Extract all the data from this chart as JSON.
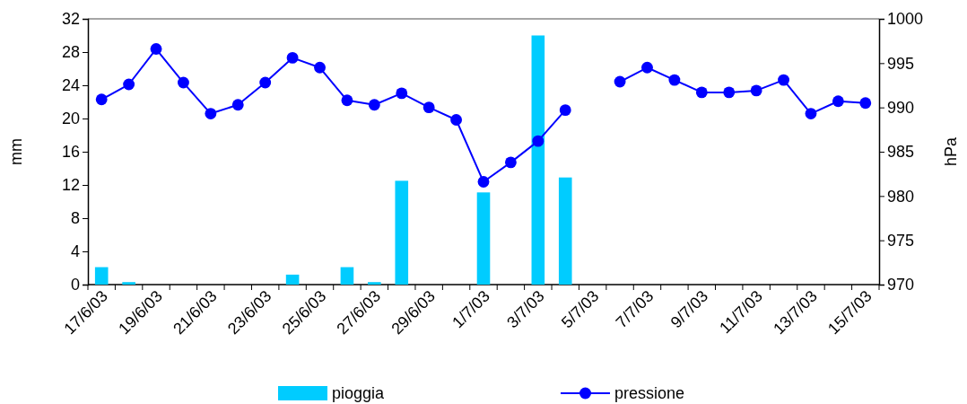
{
  "chart_data": {
    "type": "bar",
    "categories": [
      "17/6/03",
      null,
      "19/6/03",
      null,
      "21/6/03",
      null,
      "23/6/03",
      null,
      "25/6/03",
      null,
      "27/6/03",
      null,
      "29/6/03",
      null,
      "1/7/03",
      null,
      "3/7/03",
      null,
      "5/7/03",
      null,
      "7/7/03",
      null,
      "9/7/03",
      null,
      "11/7/03",
      null,
      "13/7/03",
      null,
      "15/7/03"
    ],
    "series": [
      {
        "name": "pioggia",
        "color": "#00ccff",
        "values": [
          2.1,
          0.3,
          0,
          0,
          0,
          0,
          0,
          1.2,
          0,
          2.1,
          0.3,
          12.5,
          0,
          0,
          11.1,
          0,
          30,
          12.9,
          0,
          0,
          0,
          0,
          0,
          0,
          0,
          0,
          0,
          0,
          0
        ]
      },
      {
        "name": "pressione",
        "type": "line",
        "axis": "y2",
        "color": "#0000ff",
        "values": [
          990.9,
          992.6,
          996.6,
          992.8,
          989.3,
          990.3,
          992.8,
          995.6,
          994.5,
          990.8,
          990.3,
          991.6,
          990.0,
          988.6,
          981.6,
          983.8,
          986.2,
          989.7,
          null,
          992.9,
          994.5,
          993.1,
          991.7,
          991.7,
          991.9,
          993.1,
          989.3,
          990.7,
          990.5
        ]
      }
    ],
    "ylabel": "mm",
    "y2label": "hPa",
    "ylim": [
      0,
      32
    ],
    "yticks": [
      0,
      4,
      8,
      12,
      16,
      20,
      24,
      28,
      32
    ],
    "y2lim": [
      970,
      1000
    ],
    "y2ticks": [
      970,
      975,
      980,
      985,
      990,
      995,
      1000
    ],
    "marker": "circle",
    "line_style": "solid",
    "grid": false,
    "legend": "bottom"
  }
}
